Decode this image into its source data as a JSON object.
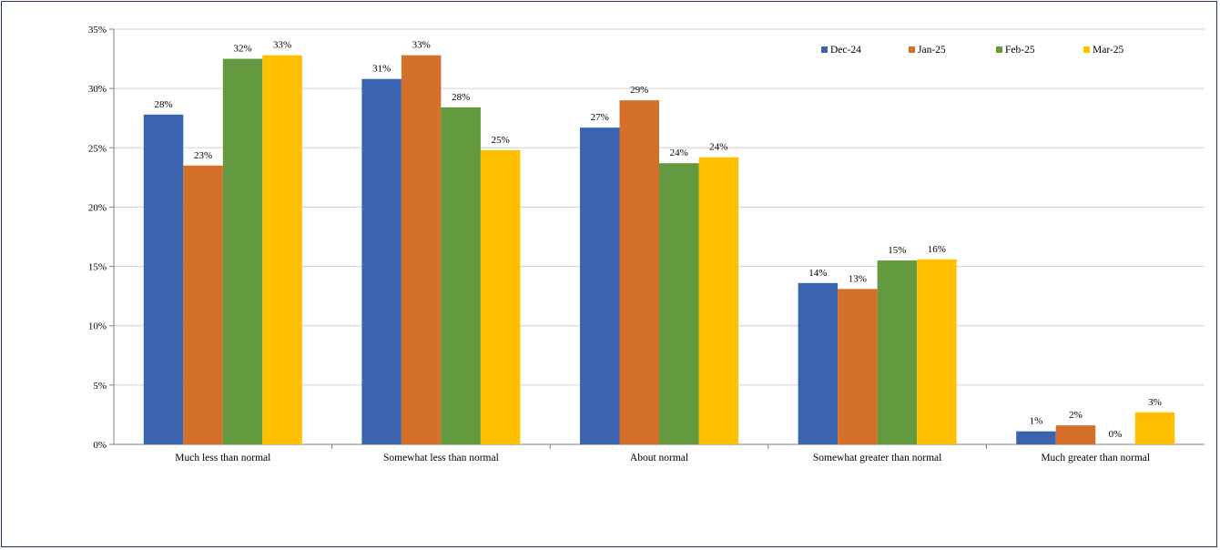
{
  "chart_data": {
    "type": "bar",
    "categories": [
      "Much less than normal",
      "Somewhat less than normal",
      "About normal",
      "Somewhat greater than normal",
      "Much greater than normal"
    ],
    "series": [
      {
        "name": "Dec-24",
        "color": "#3a64ad",
        "values": [
          27.8,
          30.8,
          26.7,
          13.6,
          1.1
        ],
        "labels": [
          "28%",
          "31%",
          "27%",
          "14%",
          "1%"
        ]
      },
      {
        "name": "Jan-25",
        "color": "#d4702a",
        "values": [
          23.5,
          32.8,
          29.0,
          13.1,
          1.6
        ],
        "labels": [
          "23%",
          "33%",
          "29%",
          "13%",
          "2%"
        ]
      },
      {
        "name": "Feb-25",
        "color": "#639a3f",
        "values": [
          32.5,
          28.4,
          23.7,
          15.5,
          0.0
        ],
        "labels": [
          "32%",
          "28%",
          "24%",
          "15%",
          "0%"
        ]
      },
      {
        "name": "Mar-25",
        "color": "#ffc000",
        "values": [
          32.8,
          24.8,
          24.2,
          15.6,
          2.7
        ],
        "labels": [
          "33%",
          "25%",
          "24%",
          "16%",
          "3%"
        ]
      }
    ],
    "y_ticks": [
      "0%",
      "5%",
      "10%",
      "15%",
      "20%",
      "25%",
      "30%",
      "35%"
    ],
    "ylim": [
      0,
      35
    ],
    "title": "",
    "xlabel": "",
    "ylabel": "",
    "grid": true,
    "legend_position": "top-right"
  }
}
